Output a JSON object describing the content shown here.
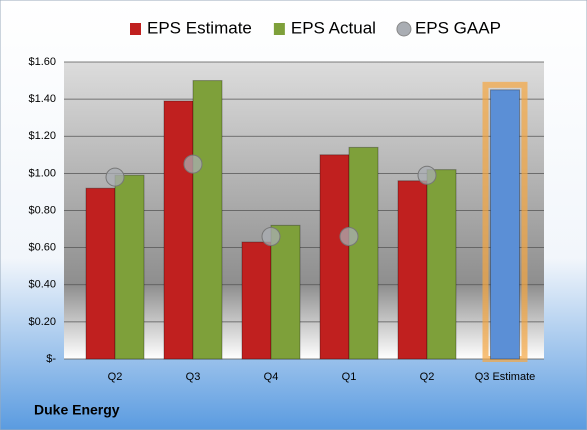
{
  "chart_data": {
    "type": "bar",
    "title": "Duke Energy",
    "categories": [
      "Q2",
      "Q3",
      "Q4",
      "Q1",
      "Q2",
      "Q3 Estimate"
    ],
    "series": [
      {
        "name": "EPS Estimate",
        "color": "#c0201f",
        "kind": "bar",
        "values": [
          0.92,
          1.39,
          0.63,
          1.1,
          0.96,
          1.45
        ]
      },
      {
        "name": "EPS Actual",
        "color": "#7ea03a",
        "kind": "bar",
        "values": [
          0.99,
          1.5,
          0.72,
          1.14,
          1.02,
          null
        ]
      },
      {
        "name": "EPS GAAP",
        "color": "#a9adb3",
        "kind": "point",
        "values": [
          0.98,
          1.05,
          0.66,
          0.66,
          0.99,
          null
        ]
      }
    ],
    "highlight": {
      "category": 5,
      "color": "#5b8fd6",
      "glow": "#f5a742"
    },
    "ylim": [
      0,
      1.6
    ],
    "yticks": [
      {
        "value": 0,
        "label": "$-"
      },
      {
        "value": 0.2,
        "label": "$0.20"
      },
      {
        "value": 0.4,
        "label": "$0.40"
      },
      {
        "value": 0.6,
        "label": "$0.60"
      },
      {
        "value": 0.8,
        "label": "$0.80"
      },
      {
        "value": 1.0,
        "label": "$1.00"
      },
      {
        "value": 1.2,
        "label": "$1.20"
      },
      {
        "value": 1.4,
        "label": "$1.40"
      },
      {
        "value": 1.6,
        "label": "$1.60"
      }
    ],
    "grid": true
  }
}
